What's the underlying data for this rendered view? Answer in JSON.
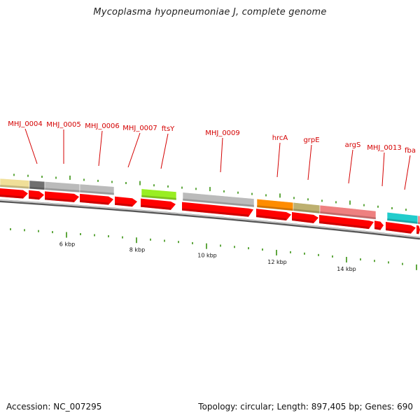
{
  "title": "Mycoplasma hyopneumoniae J, complete genome",
  "footer": {
    "accession": "Accession: NC_007295",
    "topology": "Topology: circular; Length: 897,405 bp; Genes: 690"
  },
  "colors": {
    "cds": "#ff0000",
    "label": "#d40000",
    "tick": "#2a8a00",
    "backbone": "#888888"
  },
  "gene_labels": [
    "MHJ_0004",
    "MHJ_0005",
    "MHJ_0006",
    "MHJ_0007",
    "ftsY",
    "MHJ_0009",
    "hrcA",
    "grpE",
    "argS",
    "MHJ_0013",
    "fba"
  ],
  "scale_labels": [
    "6 kbp",
    "8 kbp",
    "10 kbp",
    "12 kbp",
    "14 kbp"
  ]
}
